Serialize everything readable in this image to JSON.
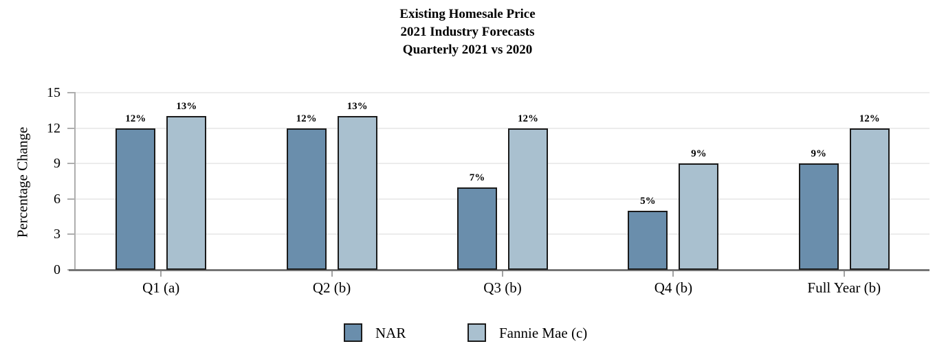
{
  "chart_data": {
    "type": "bar",
    "title_lines": [
      "Existing Homesale Price",
      "2021 Industry Forecasts",
      "Quarterly 2021 vs 2020"
    ],
    "ylabel": "Percentage Change",
    "xlabel": "",
    "categories": [
      "Q1 (a)",
      "Q2 (b)",
      "Q3 (b)",
      "Q4 (b)",
      "Full Year (b)"
    ],
    "series": [
      {
        "name": "NAR",
        "color": "#6A8EAC",
        "values": [
          12,
          12,
          7,
          5,
          9
        ]
      },
      {
        "name": "Fannie Mae (c)",
        "color": "#A9C0CF",
        "values": [
          13,
          13,
          12,
          9,
          12
        ]
      }
    ],
    "bar_labels": [
      [
        "12%",
        "12%",
        "7%",
        "5%",
        "9%"
      ],
      [
        "13%",
        "13%",
        "12%",
        "9%",
        "12%"
      ]
    ],
    "y_ticks": [
      0,
      3,
      6,
      9,
      12,
      15
    ],
    "ylim": [
      0,
      15
    ],
    "grid": true,
    "legend_position": "bottom",
    "bar_border_color": "#1a1a1a",
    "label_suffix": "%"
  }
}
